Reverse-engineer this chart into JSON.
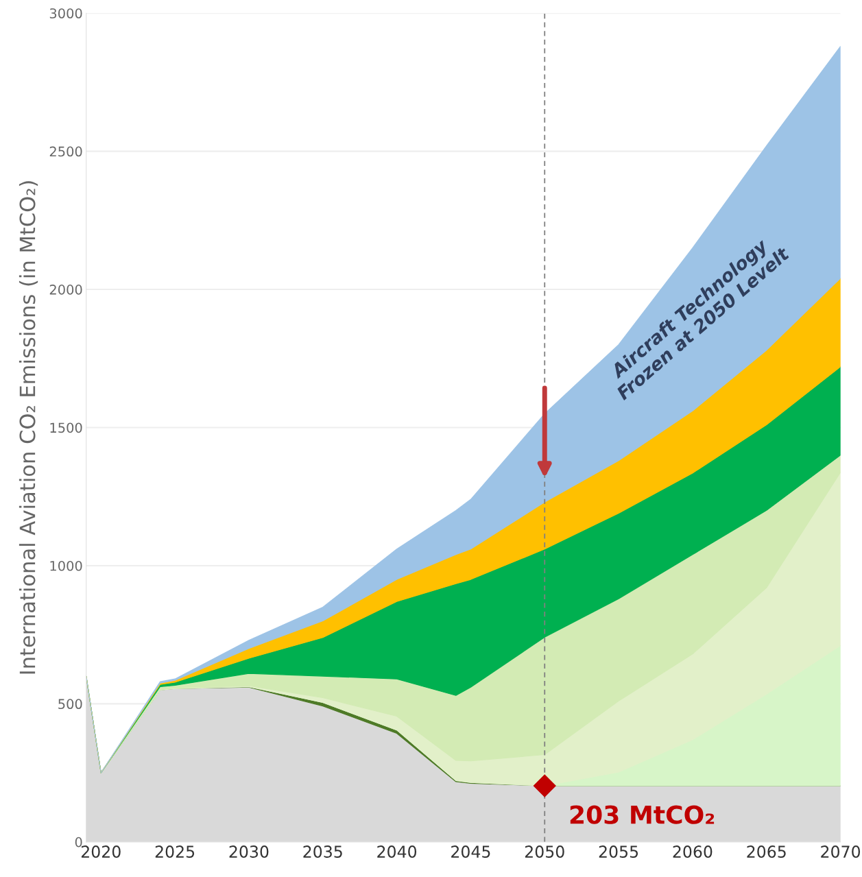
{
  "chart_data": {
    "type": "area",
    "stacked": true,
    "ylabel": "International Aviation CO₂ Emissions (in MtCO₂)",
    "x": [
      2019,
      2020,
      2024,
      2025,
      2030,
      2035,
      2040,
      2044,
      2045,
      2050,
      2055,
      2060,
      2065,
      2070
    ],
    "series": [
      {
        "color": "#d9d9d9",
        "values": [
          600,
          250,
          550,
          555,
          560,
          492,
          393,
          218,
          212,
          203,
          203,
          203,
          203,
          203
        ]
      },
      {
        "color": "#4e7a27",
        "values": [
          0,
          0,
          0,
          0,
          2,
          13,
          12,
          4,
          3,
          0,
          0,
          0,
          0,
          0
        ]
      },
      {
        "color": "#d7f5c8",
        "values": [
          0,
          0,
          0,
          0,
          0,
          0,
          0,
          0,
          0,
          0,
          50,
          167,
          332,
          508
        ]
      },
      {
        "color": "#e2f0c9",
        "values": [
          0,
          0,
          2,
          2,
          3,
          17,
          50,
          73,
          78,
          113,
          257,
          310,
          385,
          627
        ]
      },
      {
        "color": "#d3ebb4",
        "values": [
          0,
          0,
          10,
          10,
          45,
          78,
          135,
          235,
          267,
          425,
          370,
          360,
          280,
          62
        ]
      },
      {
        "color": "#00b050",
        "values": [
          0,
          0,
          8,
          11,
          55,
          140,
          280,
          405,
          390,
          319,
          310,
          295,
          310,
          320
        ]
      },
      {
        "color": "#ffc000",
        "values": [
          0,
          0,
          5,
          7,
          35,
          60,
          80,
          105,
          110,
          170,
          190,
          225,
          270,
          320
        ]
      },
      {
        "color": "#9dc3e6",
        "values": [
          0,
          0,
          5,
          5,
          30,
          50,
          110,
          160,
          180,
          320,
          420,
          590,
          740,
          840
        ]
      }
    ],
    "xlim": [
      2019,
      2070
    ],
    "xticks": [
      2020,
      2025,
      2030,
      2035,
      2040,
      2045,
      2050,
      2055,
      2060,
      2065,
      2070
    ],
    "ylim": [
      0,
      3000
    ],
    "yticks": [
      0,
      500,
      1000,
      1500,
      2000,
      2500,
      3000
    ],
    "grid": "y",
    "ref_lines": [
      {
        "axis": "x",
        "value": 2050,
        "color": "#808080",
        "line_style": "dashed"
      }
    ],
    "annotations": [
      {
        "text": "203 MtCO₂",
        "x": 2050,
        "y": 203
      },
      "Aircraft Technology\nFrozen at 2050 Levelt"
    ]
  }
}
